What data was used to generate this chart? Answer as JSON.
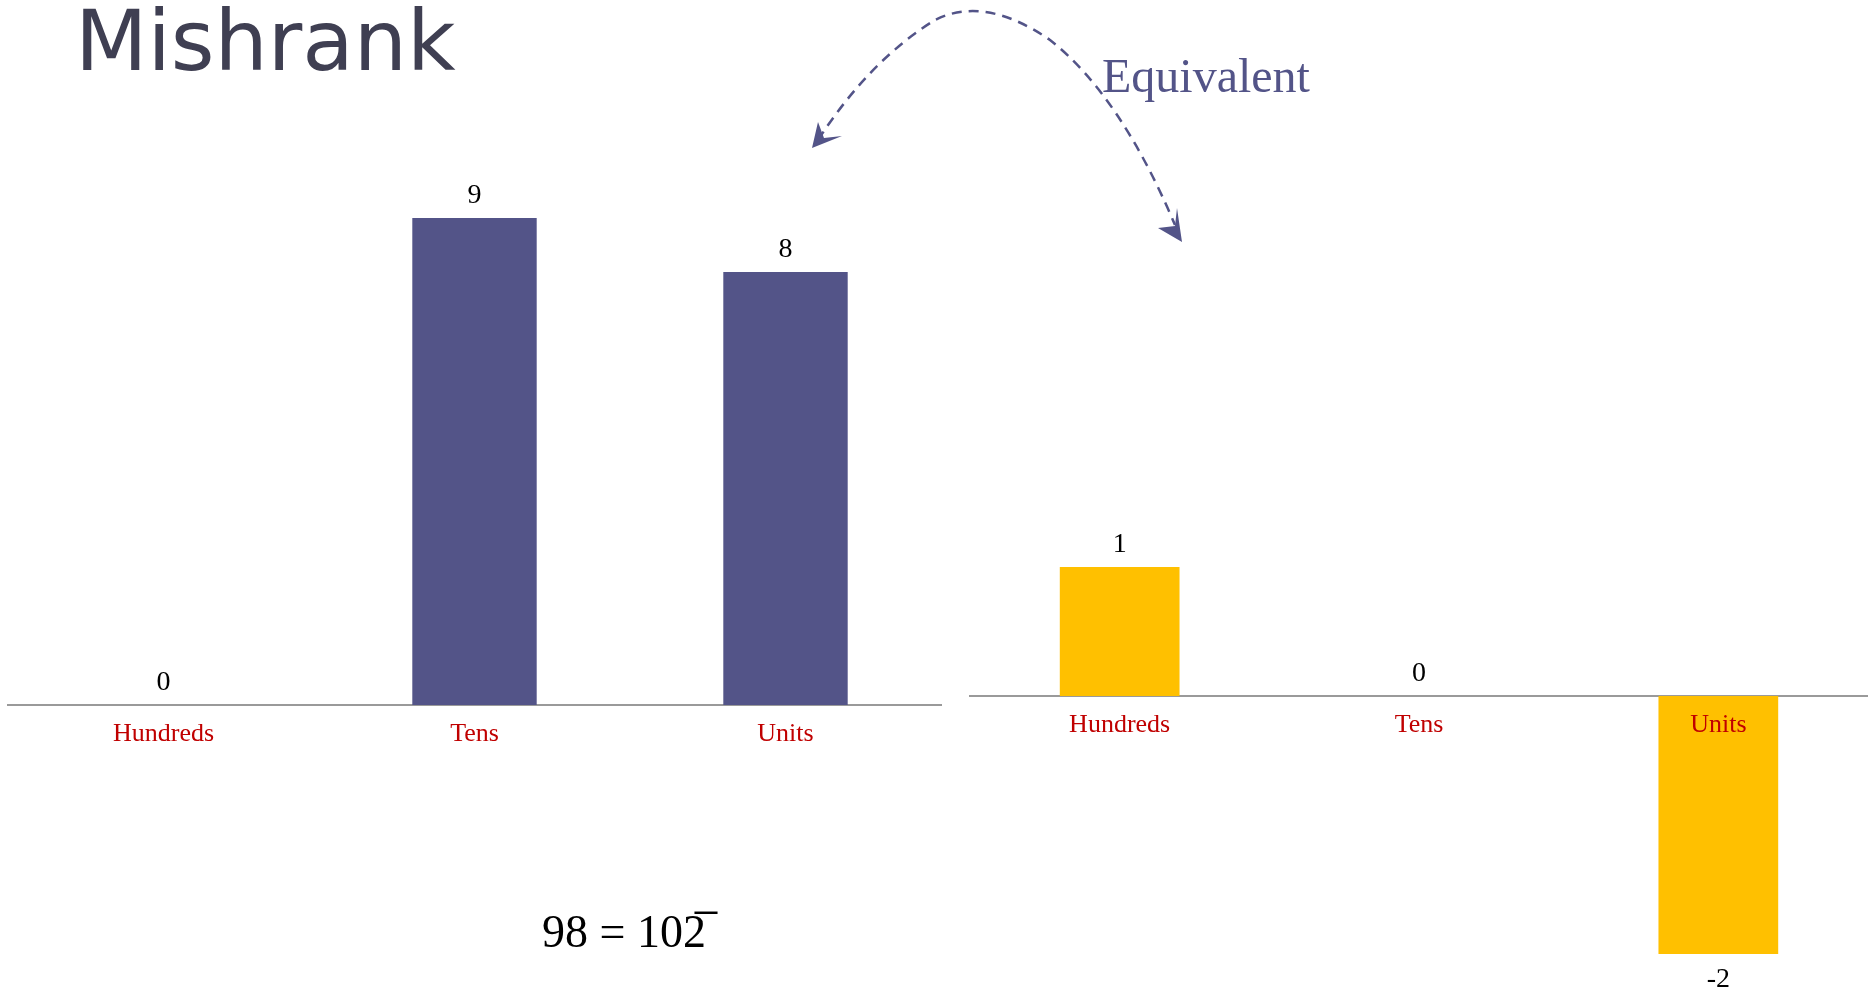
{
  "chart_data": [
    {
      "type": "bar",
      "title": "Mishrank",
      "categories": [
        "Hundreds",
        "Tens",
        "Units"
      ],
      "values": [
        0,
        9,
        8
      ],
      "color": "#535488",
      "data_labels": true,
      "annotations": [
        "98 = 102̅"
      ]
    },
    {
      "type": "bar",
      "categories": [
        "Hundreds",
        "Tens",
        "Units"
      ],
      "values": [
        1,
        0,
        -2
      ],
      "color": "#ffc000",
      "data_labels": true,
      "annotations": [
        "Equivalent"
      ]
    }
  ]
}
